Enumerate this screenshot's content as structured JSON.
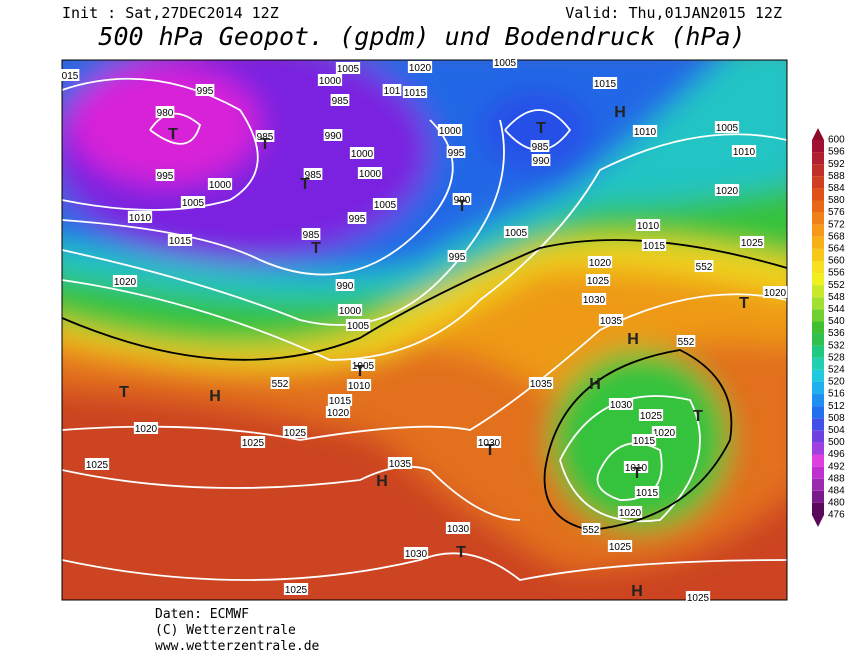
{
  "header": {
    "init": "Init : Sat,27DEC2014 12Z",
    "valid": "Valid: Thu,01JAN2015 12Z",
    "title": "500 hPa Geopot. (gpdm) und Bodendruck (hPa)"
  },
  "legend": {
    "levels": [
      476,
      480,
      484,
      488,
      492,
      496,
      500,
      504,
      508,
      512,
      516,
      520,
      524,
      528,
      532,
      536,
      540,
      544,
      548,
      552,
      556,
      560,
      564,
      568,
      572,
      576,
      580,
      584,
      588,
      592,
      596,
      600
    ]
  },
  "map": {
    "pressure_labels": [
      "015",
      "995",
      "1000",
      "1005",
      "1020",
      "1005",
      "1015",
      "1015",
      "980",
      "985",
      "985",
      "990",
      "1000",
      "1010",
      "1005",
      "1010",
      "1000",
      "995",
      "985",
      "990",
      "995",
      "1000",
      "985",
      "1000",
      "1005",
      "1005",
      "990",
      "1020",
      "995",
      "1010",
      "1015",
      "985",
      "1005",
      "1010",
      "1015",
      "1025",
      "995",
      "1020",
      "990",
      "1020",
      "1025",
      "1030",
      "1000",
      "1005",
      "1020",
      "1035",
      "1005",
      "1010",
      "1035",
      "1015",
      "1020",
      "1030",
      "1025",
      "1020",
      "1025",
      "1025",
      "1030",
      "1020",
      "1015",
      "1010",
      "1025",
      "1035",
      "1015",
      "1020",
      "1030",
      "1025",
      "1030",
      "1025",
      "1025",
      "101"
    ],
    "contour_552": [
      "552",
      "552",
      "552",
      "552"
    ],
    "centers": [
      "T",
      "T",
      "T",
      "T",
      "T",
      "T",
      "T",
      "H",
      "T",
      "H",
      "T",
      "H",
      "H",
      "T",
      "T",
      "H",
      "T",
      "T",
      "H"
    ]
  },
  "footer": {
    "source": "Daten: ECMWF",
    "copyright": "(C) Wetterzentrale",
    "url": "www.wetterzentrale.de"
  }
}
